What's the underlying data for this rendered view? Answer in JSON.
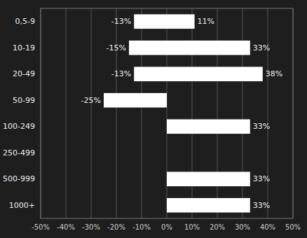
{
  "chart_data": {
    "type": "bar",
    "orientation": "horizontal",
    "stacked": true,
    "grid": true,
    "data_labels": true,
    "categories": [
      "0,5-9",
      "10-19",
      "20-49",
      "50-99",
      "100-249",
      "250-499",
      "500-999",
      "1000+"
    ],
    "series": [
      {
        "color": "#ffffff",
        "values": [
          -13,
          -15,
          -13,
          -25,
          0,
          0,
          0,
          0
        ],
        "value_labels": [
          "-13%",
          "-15%",
          "-13%",
          "-25%",
          null,
          null,
          null,
          null
        ]
      },
      {
        "color": "#ffffff",
        "values": [
          11,
          33,
          38,
          0,
          33,
          0,
          33,
          33
        ],
        "value_labels": [
          "11%",
          "33%",
          "38%",
          null,
          "33%",
          null,
          "33%",
          "33%"
        ]
      }
    ],
    "xlim": [
      -50,
      50
    ],
    "xticks": [
      {
        "value": -50,
        "label": "-50%"
      },
      {
        "value": -40,
        "label": "-40%"
      },
      {
        "value": -30,
        "label": "-30%"
      },
      {
        "value": -20,
        "label": "-20%"
      },
      {
        "value": -10,
        "label": "-10%"
      },
      {
        "value": 0,
        "label": "0%"
      },
      {
        "value": 10,
        "label": "10%"
      },
      {
        "value": 20,
        "label": "20%"
      },
      {
        "value": 30,
        "label": "30%"
      },
      {
        "value": 40,
        "label": "40%"
      },
      {
        "value": 50,
        "label": "50%"
      }
    ]
  }
}
